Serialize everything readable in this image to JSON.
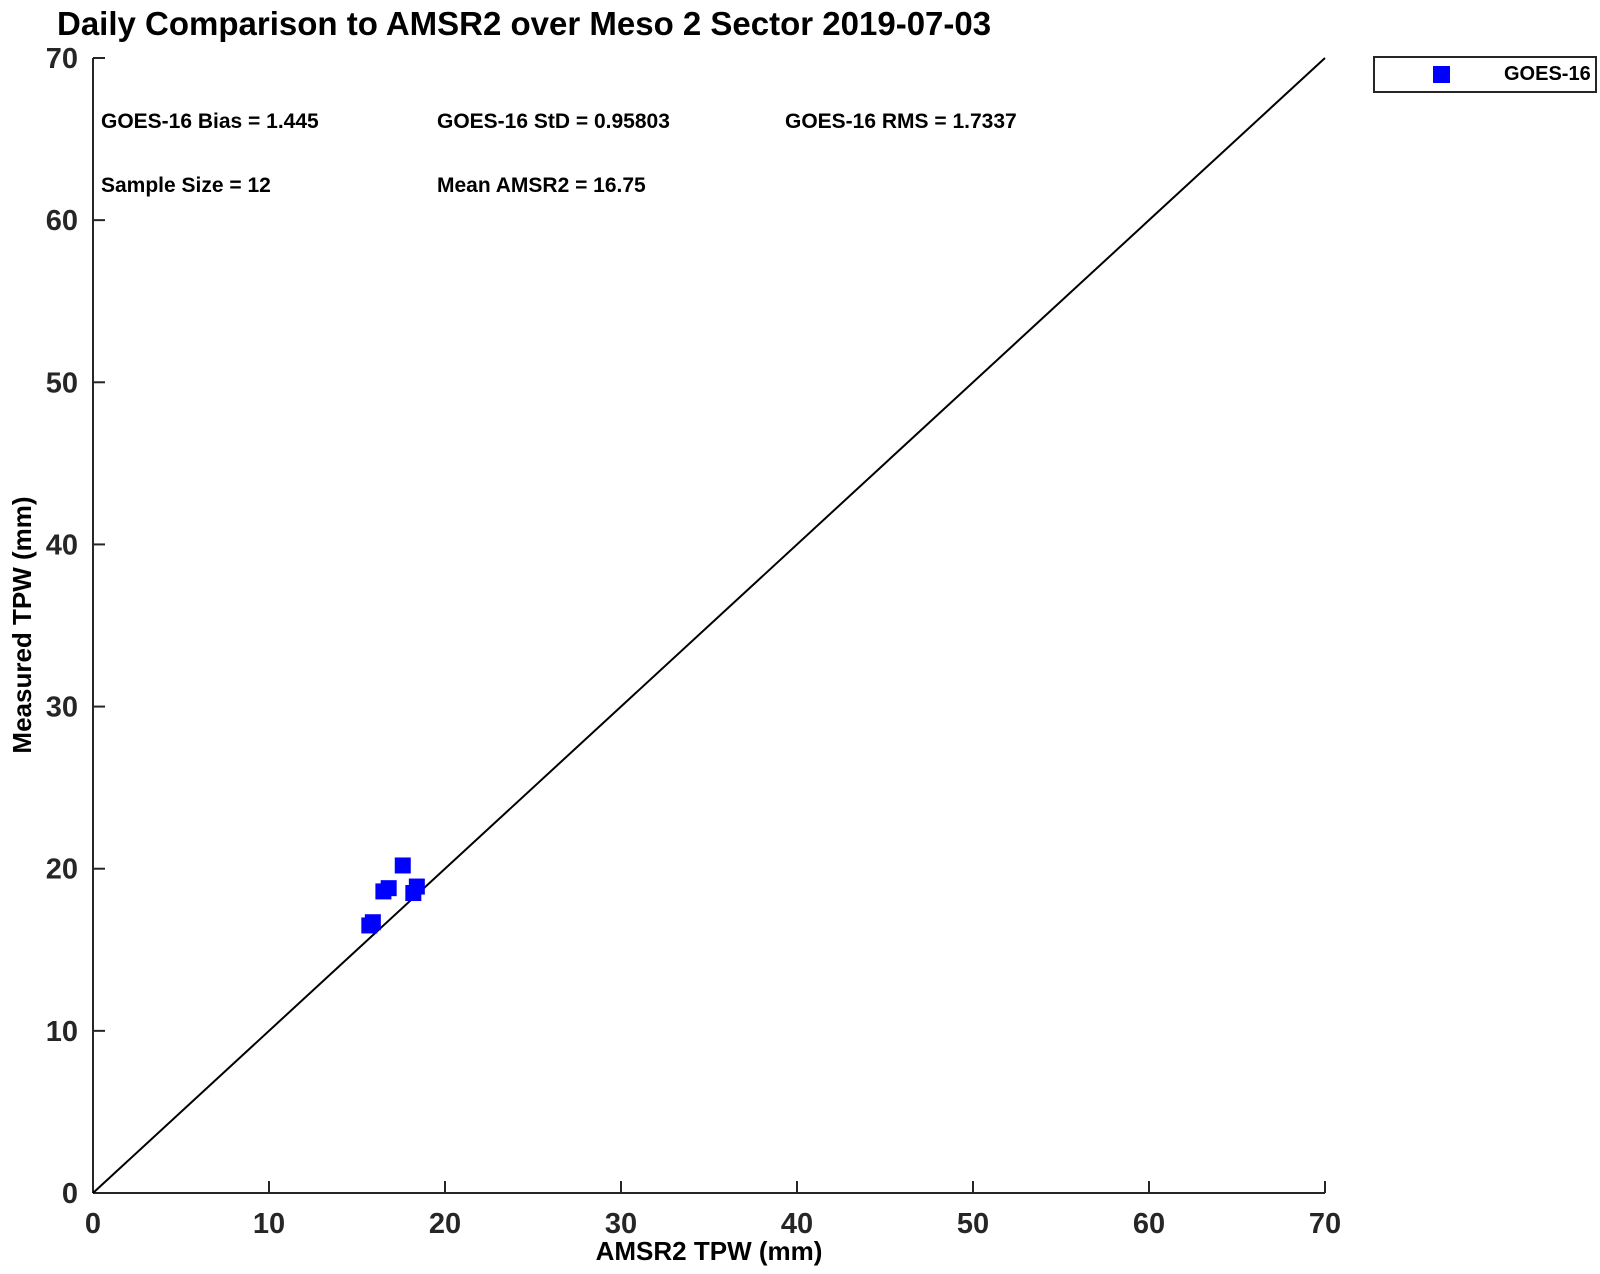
{
  "figure": {
    "title": "Daily Comparison to AMSR2 over Meso 2 Sector 2019-07-03",
    "background": "#ffffff"
  },
  "stats": {
    "bias": "GOES-16 Bias = 1.445",
    "std": "GOES-16 StD = 0.95803",
    "rms": "GOES-16 RMS = 1.7337",
    "sample_size": "Sample Size = 12",
    "mean_amsr2": "Mean AMSR2 = 16.75"
  },
  "legend": {
    "position": "top-right",
    "entries": [
      {
        "label": "GOES-16",
        "marker": "square",
        "color": "#0000ff"
      }
    ]
  },
  "chart_data": {
    "type": "scatter",
    "title": "Daily Comparison to AMSR2 over Meso 2 Sector 2019-07-03",
    "xlabel": "AMSR2 TPW (mm)",
    "ylabel": "Measured TPW (mm)",
    "xlim": [
      0,
      70
    ],
    "ylim": [
      0,
      70
    ],
    "x_ticks": [
      0,
      10,
      20,
      30,
      40,
      50,
      60,
      70
    ],
    "y_ticks": [
      0,
      10,
      20,
      30,
      40,
      50,
      60,
      70
    ],
    "grid": false,
    "axis_color": "#262626",
    "tick_label_color": "#262626",
    "reference_line": {
      "label": "1:1 identity line",
      "from": [
        0,
        0
      ],
      "to": [
        70,
        70
      ],
      "color": "#000000"
    },
    "series": [
      {
        "name": "GOES-16",
        "marker": "square",
        "color": "#0000ff",
        "points": [
          [
            17.6,
            20.2
          ],
          [
            16.5,
            18.6
          ],
          [
            16.8,
            18.8
          ],
          [
            18.4,
            18.9
          ],
          [
            18.2,
            18.5
          ],
          [
            15.9,
            16.7
          ],
          [
            15.7,
            16.5
          ]
        ]
      }
    ],
    "annotations": [
      "GOES-16 Bias = 1.445",
      "GOES-16 StD = 0.95803",
      "GOES-16 RMS = 1.7337",
      "Sample Size = 12",
      "Mean AMSR2 = 16.75"
    ]
  }
}
